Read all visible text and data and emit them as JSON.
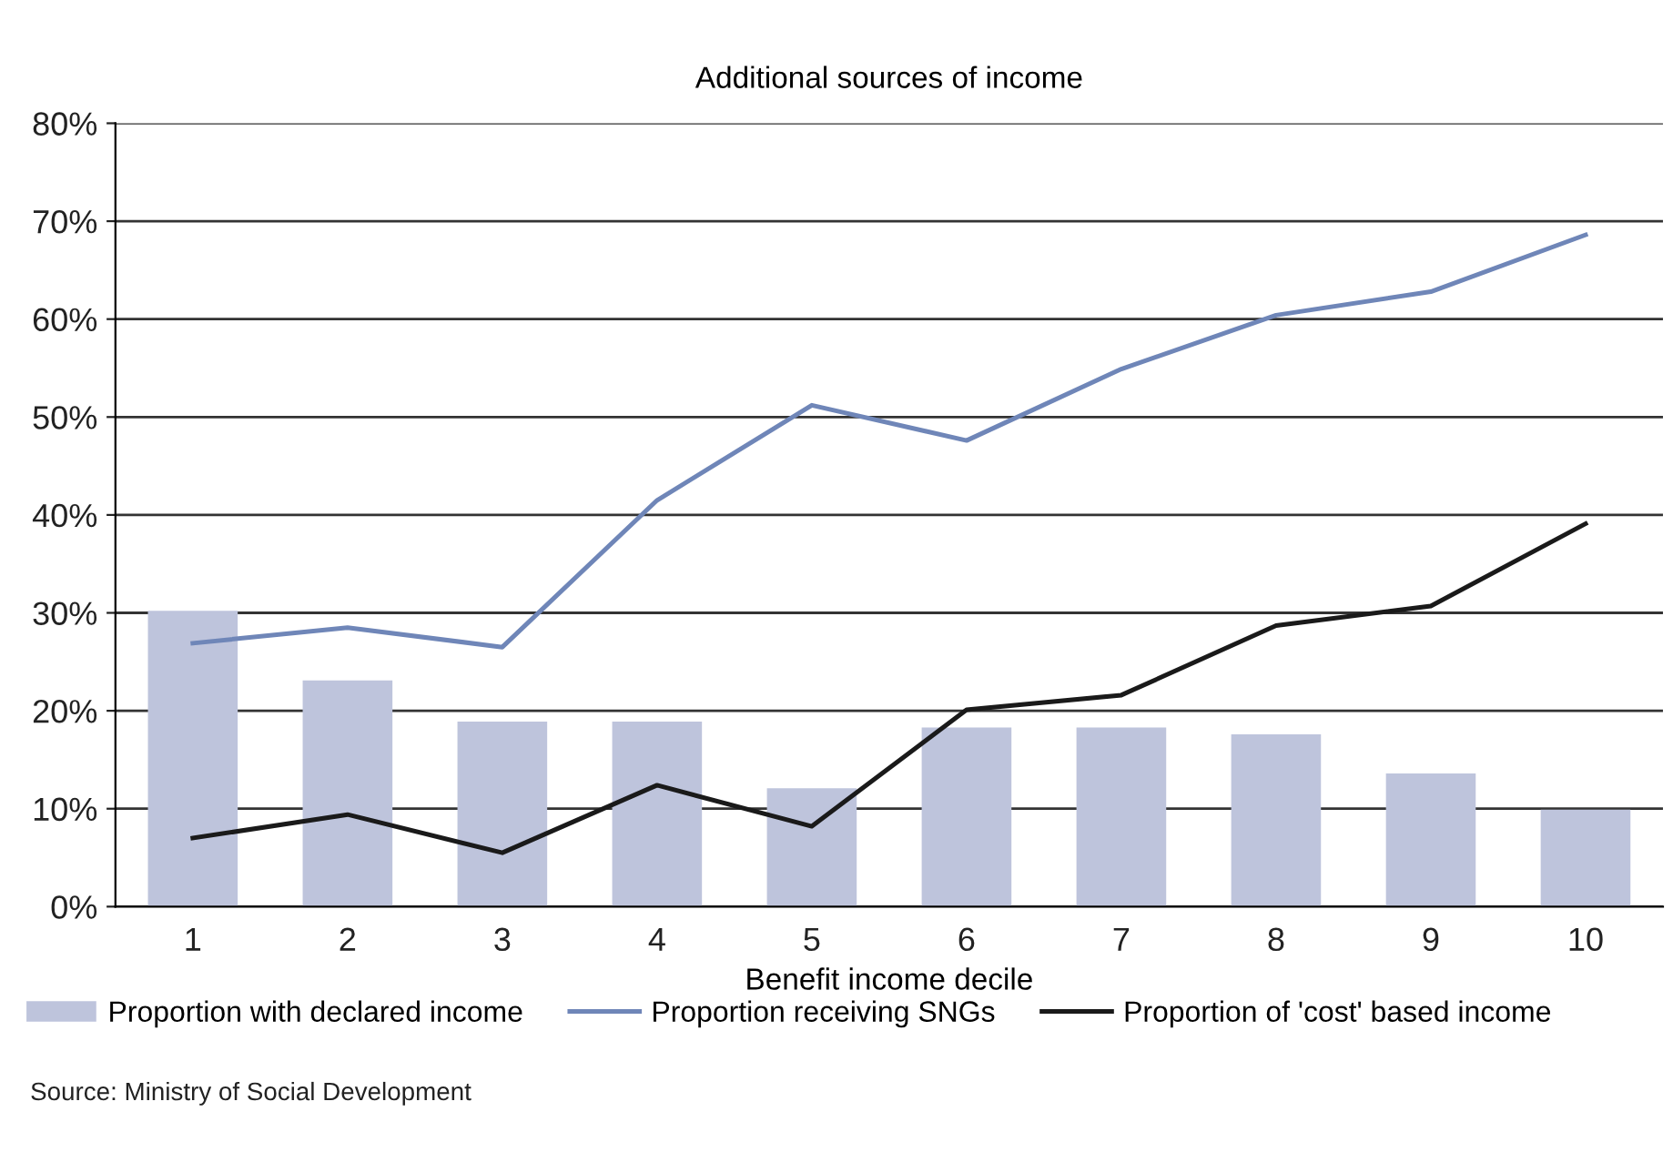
{
  "chart_data": {
    "type": "bar",
    "title": "Additional sources of income",
    "xlabel": "Benefit income decile",
    "categories": [
      "1",
      "2",
      "3",
      "4",
      "5",
      "6",
      "7",
      "8",
      "9",
      "10"
    ],
    "series": [
      {
        "name": "Proportion with declared income",
        "color": "#bec4dc",
        "values": [
          30.2,
          23.1,
          18.9,
          18.9,
          12.1,
          18.3,
          18.3,
          17.6,
          13.6,
          9.9
        ]
      },
      {
        "name": "Proportion receiving SNGs",
        "type": "line",
        "color": "#6f86b8",
        "values": [
          26.9,
          28.5,
          26.5,
          41.5,
          51.2,
          47.6,
          54.9,
          60.4,
          62.8,
          68.6
        ]
      },
      {
        "name": "Proportion of 'cost' based income",
        "type": "line",
        "color": "#1a1a1a",
        "values": [
          7.0,
          9.4,
          5.5,
          12.4,
          8.2,
          20.1,
          21.6,
          28.7,
          30.7,
          39.1
        ]
      }
    ],
    "ylim": [
      0,
      80
    ],
    "yticks": [
      {
        "value": 0,
        "label": "0%"
      },
      {
        "value": 10,
        "label": "10%"
      },
      {
        "value": 20,
        "label": "20%"
      },
      {
        "value": 30,
        "label": "30%"
      },
      {
        "value": 40,
        "label": "40%"
      },
      {
        "value": 50,
        "label": "50%"
      },
      {
        "value": 60,
        "label": "60%"
      },
      {
        "value": 70,
        "label": "70%"
      },
      {
        "value": 80,
        "label": "80%"
      }
    ],
    "grid": "y",
    "legend": "bottom",
    "marker": "none",
    "line_style": "solid",
    "annotations": [
      "Source: Ministry of Social Development"
    ]
  }
}
